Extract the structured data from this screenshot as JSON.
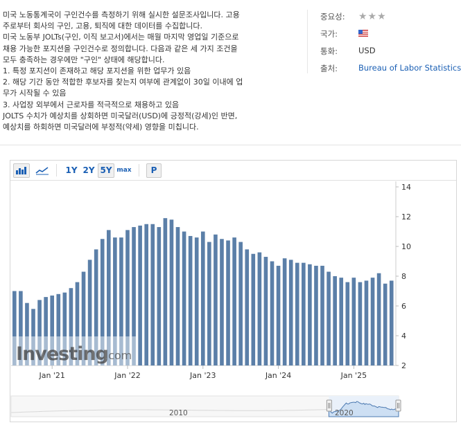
{
  "description": {
    "lines": [
      "미국 노동통계국이 구인건수를 측정하기 위해 실시한 설문조사입니다. 고용",
      "주로부터 회사의 구인, 고용, 퇴직에 대한 데이터를 수집합니다.",
      "미국 노동부 JOLTs(구인, 이직 보고서)에서는 매월 마지막 영업일 기준으로",
      "채용 가능한 포지션을 구인건수로 정의합니다. 다음과 같은 세 가지 조건을",
      "모두 충족하는 경우에만 \"구인\" 상태에 해당합니다.",
      "1. 특정 포지션이 존재하고 해당 포지션을 위한 업무가 있음",
      "2. 해당 기간 동안 적합한 후보자를 찾는지 여부에 관계없이 30일 이내에 업",
      "무가 시작될 수 있음",
      "3. 사업장 외부에서 근로자를 적극적으로 채용하고 있음",
      "JOLTS 수치가 예상치를 상회하면 미국달러(USD)에 긍정적(강세)인 반면,",
      "예상치를 하회하면 미국달러에 부정적(약세) 영향을 미칩니다."
    ]
  },
  "meta": {
    "importance_label": "중요성:",
    "importance_stars": "★★★",
    "country_label": "국가:",
    "country_flag": "us-flag-icon",
    "currency_label": "통화:",
    "currency_value": "USD",
    "source_label": "출처:",
    "source_value": "Bureau of Labor Statistics"
  },
  "toolbar": {
    "bar_icon": "bar-chart-icon",
    "line_icon": "line-chart-icon",
    "ranges": [
      "1Y",
      "2Y",
      "5Y",
      "max"
    ],
    "active_range": "5Y",
    "print_label": "P"
  },
  "watermark": {
    "brand": "Investing",
    "suffix": ".com"
  },
  "colors": {
    "bar": "#5b7fa8",
    "navigator_fill": "#cddff3",
    "navigator_line": "#4a78b0",
    "link": "#1a5fb4"
  },
  "chart_data": {
    "type": "bar",
    "ylim": [
      2,
      14
    ],
    "yticks": [
      2,
      4,
      6,
      8,
      10,
      12,
      14
    ],
    "x_ticks": [
      "Jan '21",
      "Jan '22",
      "Jan '23",
      "Jan '24",
      "Jan '25"
    ],
    "start_month": "Jul '20",
    "values": [
      7.0,
      7.0,
      6.2,
      5.8,
      6.4,
      6.6,
      6.7,
      6.8,
      6.9,
      7.2,
      7.6,
      8.3,
      9.1,
      9.8,
      10.5,
      11.1,
      10.6,
      10.6,
      11.1,
      11.3,
      11.4,
      11.5,
      11.5,
      11.3,
      11.9,
      11.8,
      11.3,
      11.0,
      10.7,
      10.6,
      11.0,
      10.3,
      10.8,
      10.5,
      10.4,
      10.6,
      10.3,
      9.8,
      9.5,
      9.6,
      9.3,
      9.0,
      8.7,
      9.2,
      9.1,
      8.9,
      8.9,
      8.8,
      8.7,
      8.7,
      8.3,
      8.0,
      7.9,
      7.6,
      7.9,
      7.6,
      7.7,
      7.9,
      8.2,
      7.5,
      7.7
    ]
  },
  "navigator": {
    "labels": [
      "2010",
      "2020"
    ],
    "window_start_fraction": 0.82
  }
}
